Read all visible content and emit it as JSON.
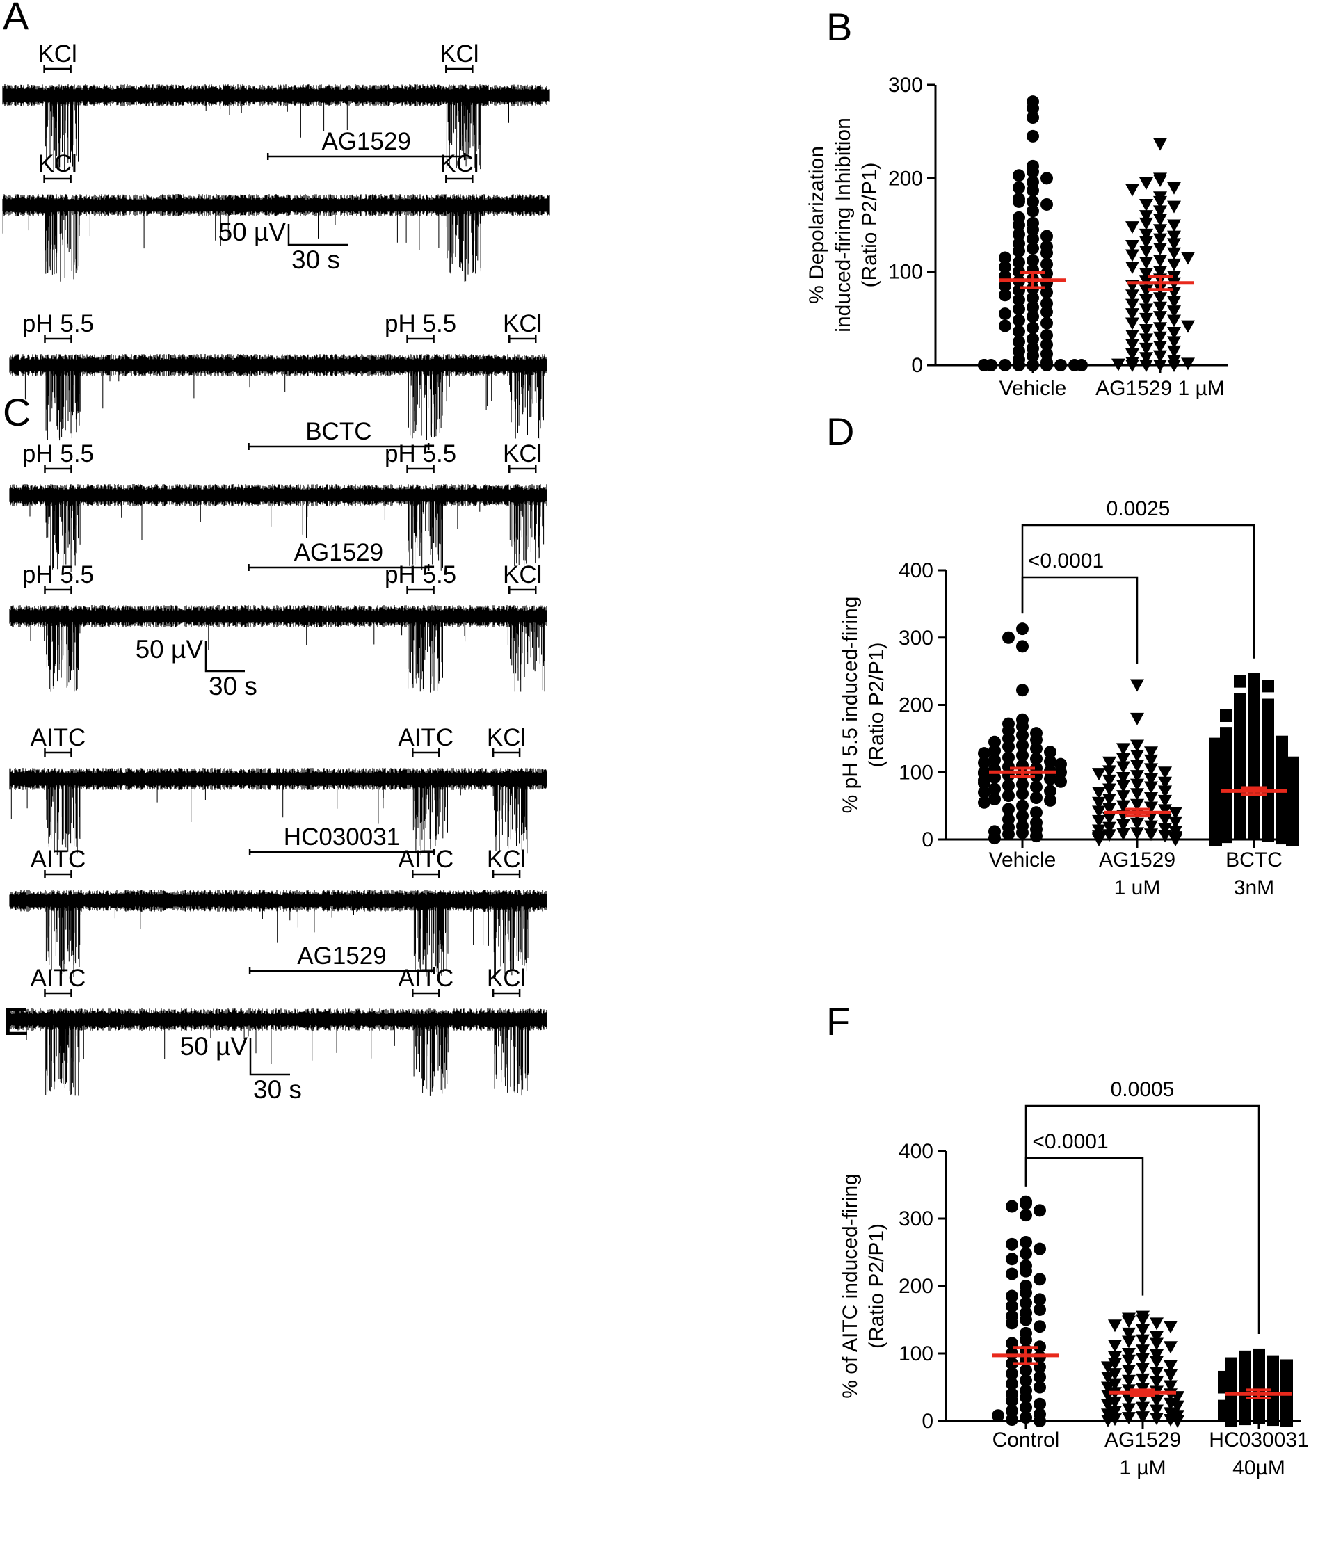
{
  "panels": {
    "A": {
      "letter": "A",
      "traces": [
        {
          "stim": [
            {
              "label": "KCl",
              "t": 0.1
            },
            {
              "label": "KCl",
              "t": 0.835
            }
          ],
          "drug": null
        },
        {
          "stim": [
            {
              "label": "KCl",
              "t": 0.1
            },
            {
              "label": "KCl",
              "t": 0.835
            }
          ],
          "drug": {
            "label": "AG1529",
            "t0": 0.485,
            "t1": 0.845
          }
        }
      ],
      "scale": {
        "v": "50 µV",
        "t": "30 s"
      }
    },
    "C": {
      "letter": "C",
      "traces": [
        {
          "stim": [
            {
              "label": "pH 5.5",
              "t": 0.09
            },
            {
              "label": "pH 5.5",
              "t": 0.765
            },
            {
              "label": "KCl",
              "t": 0.955
            }
          ],
          "drug": null
        },
        {
          "stim": [
            {
              "label": "pH 5.5",
              "t": 0.09
            },
            {
              "label": "pH 5.5",
              "t": 0.765
            },
            {
              "label": "KCl",
              "t": 0.955
            }
          ],
          "drug": {
            "label": "BCTC",
            "t0": 0.445,
            "t1": 0.78
          }
        },
        {
          "stim": [
            {
              "label": "pH 5.5",
              "t": 0.09
            },
            {
              "label": "pH 5.5",
              "t": 0.765
            },
            {
              "label": "KCl",
              "t": 0.955
            }
          ],
          "drug": {
            "label": "AG1529",
            "t0": 0.445,
            "t1": 0.78
          }
        }
      ],
      "scale": {
        "v": "50 µV",
        "t": "30 s"
      }
    },
    "E": {
      "letter": "E",
      "traces": [
        {
          "stim": [
            {
              "label": "AITC",
              "t": 0.09
            },
            {
              "label": "AITC",
              "t": 0.775
            },
            {
              "label": "KCl",
              "t": 0.925
            }
          ],
          "drug": null
        },
        {
          "stim": [
            {
              "label": "AITC",
              "t": 0.09
            },
            {
              "label": "AITC",
              "t": 0.775
            },
            {
              "label": "KCl",
              "t": 0.925
            }
          ],
          "drug": {
            "label": "HC030031",
            "t0": 0.447,
            "t1": 0.79
          }
        },
        {
          "stim": [
            {
              "label": "AITC",
              "t": 0.09
            },
            {
              "label": "AITC",
              "t": 0.775
            },
            {
              "label": "KCl",
              "t": 0.925
            }
          ],
          "drug": {
            "label": "AG1529",
            "t0": 0.447,
            "t1": 0.79
          }
        }
      ],
      "scale": {
        "v": "50 µV",
        "t": "30 s"
      }
    }
  },
  "chart_data": [
    {
      "panel": "B",
      "type": "scatter",
      "ylabel_lines": [
        "% Depolarization",
        "induced-firing Inhibition",
        "(Ratio P2/P1)"
      ],
      "ylim": [
        0,
        300
      ],
      "yticks": [
        0,
        100,
        200,
        300
      ],
      "groups": [
        {
          "label": [
            "Vehicle"
          ],
          "marker": "circle",
          "mean": 91,
          "sem": 8,
          "values": [
            282,
            275,
            265,
            245,
            213,
            207,
            203,
            200,
            196,
            190,
            187,
            178,
            175,
            175,
            172,
            165,
            158,
            152,
            150,
            145,
            140,
            138,
            135,
            130,
            127,
            125,
            122,
            120,
            115,
            112,
            110,
            108,
            105,
            102,
            100,
            98,
            95,
            92,
            90,
            88,
            85,
            82,
            80,
            78,
            75,
            72,
            70,
            66,
            62,
            60,
            57,
            55,
            52,
            48,
            45,
            42,
            40,
            36,
            32,
            28,
            25,
            22,
            18,
            15,
            12,
            10,
            6,
            3,
            0,
            0,
            0,
            0,
            0,
            0,
            0,
            0,
            0,
            0
          ]
        },
        {
          "label": [
            "AG1529 1 µM"
          ],
          "marker": "triangle-down",
          "mean": 88,
          "sem": 7,
          "values": [
            237,
            200,
            198,
            195,
            190,
            188,
            180,
            175,
            172,
            170,
            165,
            160,
            156,
            152,
            150,
            148,
            145,
            140,
            138,
            135,
            132,
            130,
            128,
            125,
            122,
            120,
            118,
            115,
            112,
            110,
            108,
            105,
            100,
            98,
            95,
            92,
            90,
            88,
            85,
            82,
            80,
            78,
            75,
            72,
            70,
            68,
            65,
            62,
            60,
            58,
            55,
            52,
            50,
            48,
            45,
            42,
            40,
            38,
            35,
            32,
            30,
            28,
            25,
            22,
            20,
            18,
            15,
            12,
            10,
            8,
            5,
            3,
            2,
            1,
            0,
            0,
            0,
            0
          ]
        }
      ],
      "comparisons": []
    },
    {
      "panel": "D",
      "type": "scatter",
      "ylabel_lines": [
        "% pH 5.5 induced-firing",
        "(Ratio P2/P1)"
      ],
      "ylim": [
        0,
        400
      ],
      "yticks": [
        0,
        100,
        200,
        300,
        400
      ],
      "groups": [
        {
          "label": [
            "Vehicle"
          ],
          "marker": "circle",
          "mean": 100,
          "sem": 6,
          "values": [
            313,
            300,
            287,
            222,
            178,
            172,
            168,
            162,
            158,
            155,
            150,
            148,
            145,
            140,
            138,
            135,
            132,
            130,
            128,
            125,
            122,
            120,
            118,
            116,
            114,
            112,
            110,
            108,
            106,
            104,
            102,
            100,
            100,
            98,
            96,
            95,
            94,
            92,
            90,
            88,
            86,
            84,
            82,
            80,
            78,
            75,
            72,
            70,
            68,
            65,
            62,
            60,
            58,
            55,
            50,
            45,
            40,
            35,
            30,
            25,
            20,
            18,
            15,
            12,
            10,
            8,
            5,
            2
          ]
        },
        {
          "label": [
            "AG1529",
            "1 uM"
          ],
          "marker": "triangle-down",
          "mean": 40,
          "sem": 5,
          "values": [
            230,
            180,
            140,
            135,
            130,
            125,
            120,
            118,
            115,
            110,
            108,
            105,
            102,
            100,
            98,
            95,
            92,
            90,
            88,
            85,
            82,
            80,
            78,
            75,
            72,
            70,
            68,
            65,
            62,
            60,
            58,
            55,
            52,
            50,
            48,
            46,
            44,
            42,
            40,
            38,
            36,
            34,
            32,
            30,
            28,
            26,
            24,
            22,
            20,
            18,
            16,
            14,
            12,
            10,
            9,
            8,
            7,
            6,
            5,
            4,
            3,
            2,
            2,
            1,
            1,
            0,
            0,
            0
          ]
        },
        {
          "label": [
            "BCTC",
            "3nM"
          ],
          "marker": "square",
          "mean": 72,
          "sem": 5,
          "values": [
            238,
            235,
            228,
            220,
            212,
            208,
            200,
            196,
            192,
            188,
            184,
            180,
            176,
            172,
            168,
            165,
            162,
            158,
            155,
            152,
            150,
            148,
            145,
            142,
            140,
            138,
            135,
            132,
            130,
            128,
            126,
            124,
            122,
            120,
            118,
            116,
            114,
            112,
            110,
            108,
            106,
            104,
            102,
            100,
            98,
            96,
            94,
            92,
            90,
            88,
            86,
            84,
            82,
            80,
            78,
            76,
            74,
            72,
            70,
            68,
            66,
            64,
            62,
            60,
            58,
            56,
            54,
            52,
            50,
            48,
            46,
            44,
            42,
            40,
            38,
            36,
            34,
            32,
            30,
            28,
            26,
            24,
            22,
            20,
            18,
            16,
            14,
            12,
            10,
            8,
            6,
            4,
            2,
            0,
            0,
            0
          ]
        }
      ],
      "comparisons": [
        {
          "a": 0,
          "b": 1,
          "label": "<0.0001",
          "level": 0
        },
        {
          "a": 0,
          "b": 2,
          "label": "0.0025",
          "level": 1
        }
      ]
    },
    {
      "panel": "F",
      "type": "scatter",
      "ylabel_lines": [
        "% of AITC induced-firing",
        "(Ratio P2/P1)"
      ],
      "ylim": [
        0,
        400
      ],
      "yticks": [
        0,
        100,
        200,
        300,
        400
      ],
      "groups": [
        {
          "label": [
            "Control"
          ],
          "marker": "circle",
          "mean": 97,
          "sem": 12,
          "values": [
            325,
            322,
            318,
            312,
            305,
            265,
            262,
            255,
            248,
            240,
            230,
            222,
            218,
            210,
            200,
            190,
            185,
            180,
            175,
            170,
            165,
            160,
            155,
            150,
            145,
            140,
            130,
            120,
            115,
            110,
            105,
            100,
            95,
            90,
            85,
            80,
            75,
            70,
            65,
            60,
            55,
            50,
            45,
            40,
            35,
            30,
            25,
            20,
            15,
            10,
            8,
            5,
            2,
            0
          ]
        },
        {
          "label": [
            "AG1529",
            "1 µM"
          ],
          "marker": "triangle-down",
          "mean": 42,
          "sem": 4,
          "values": [
            155,
            152,
            150,
            148,
            145,
            142,
            140,
            135,
            130,
            125,
            120,
            118,
            115,
            112,
            110,
            105,
            100,
            98,
            95,
            92,
            90,
            88,
            85,
            82,
            80,
            78,
            75,
            72,
            70,
            68,
            65,
            62,
            60,
            58,
            55,
            52,
            50,
            48,
            46,
            44,
            42,
            40,
            38,
            36,
            34,
            32,
            30,
            28,
            26,
            24,
            22,
            20,
            18,
            16,
            14,
            12,
            10,
            8,
            6,
            5,
            4,
            3,
            2,
            1,
            0
          ]
        },
        {
          "label": [
            "HC030031",
            "40µM"
          ],
          "marker": "square",
          "mean": 40,
          "sem": 6,
          "values": [
            98,
            95,
            92,
            90,
            88,
            85,
            82,
            78,
            75,
            72,
            70,
            68,
            65,
            62,
            60,
            58,
            55,
            52,
            50,
            48,
            45,
            42,
            40,
            38,
            35,
            32,
            30,
            28,
            25,
            22,
            20,
            18,
            15,
            12,
            10,
            8,
            5,
            3,
            2,
            1,
            0
          ]
        }
      ],
      "comparisons": [
        {
          "a": 0,
          "b": 1,
          "label": "<0.0001",
          "level": 0
        },
        {
          "a": 0,
          "b": 2,
          "label": "0.0005",
          "level": 1
        }
      ]
    }
  ],
  "colors": {
    "ink": "#000000",
    "mean": "#e8291c"
  }
}
